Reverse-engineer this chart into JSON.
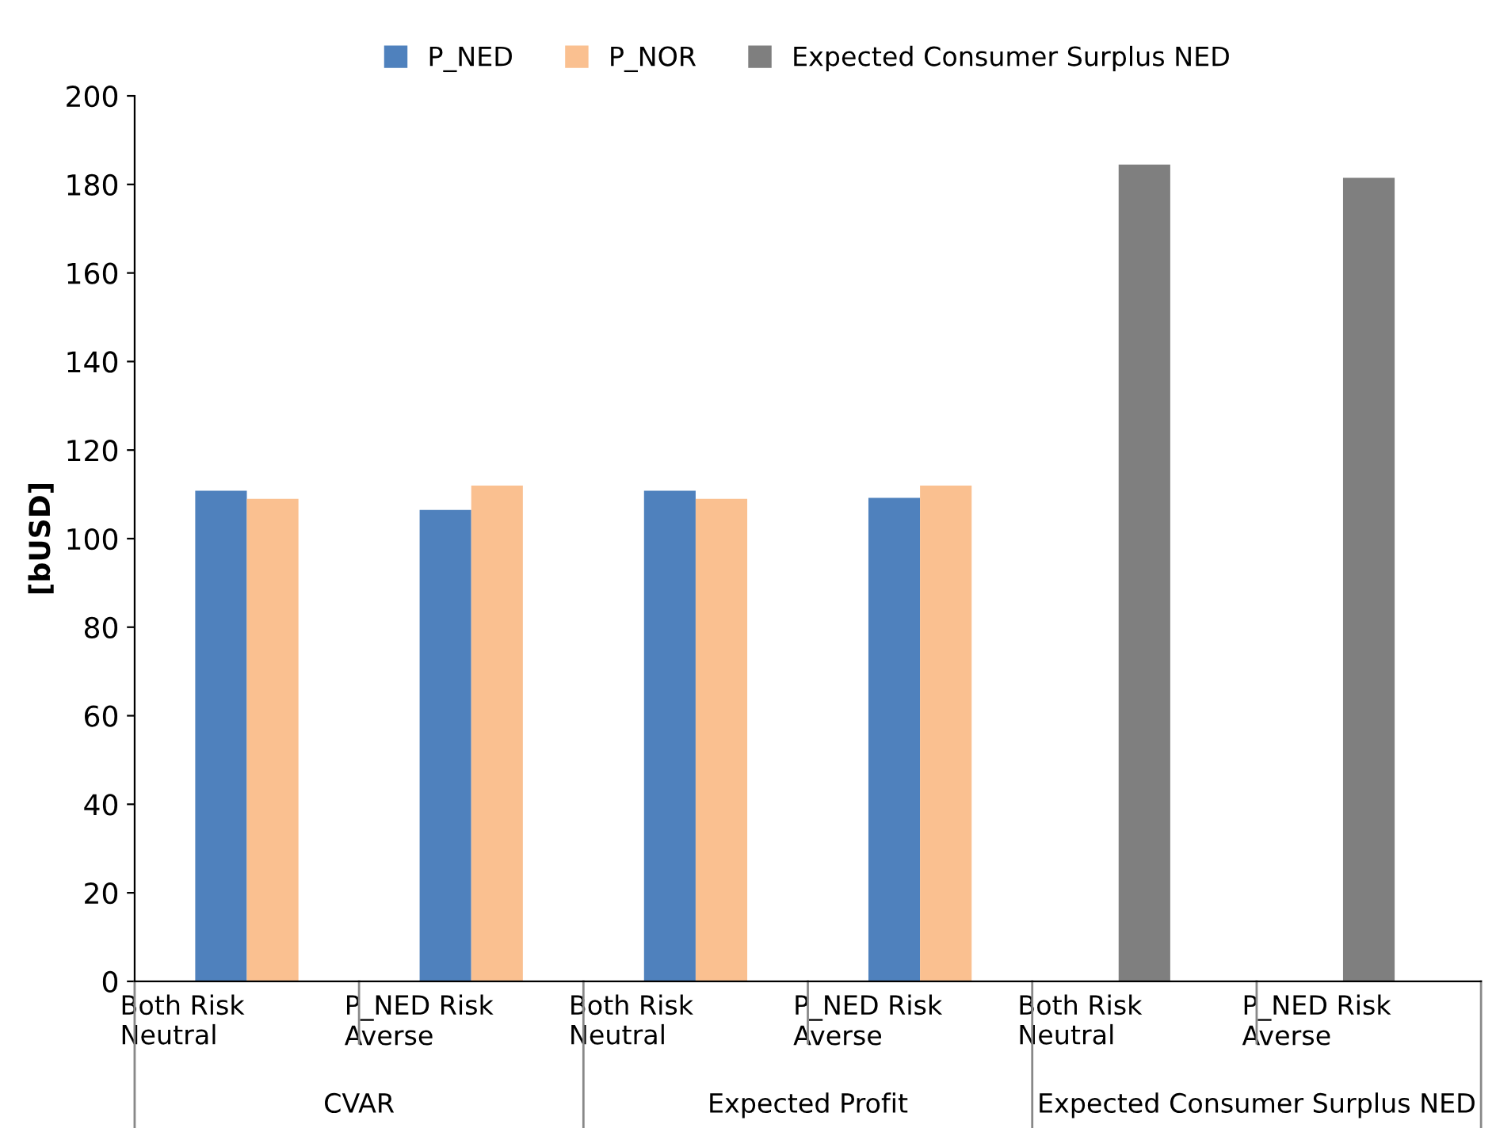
{
  "chart_data": {
    "type": "bar",
    "ylabel": "[bUSD]",
    "categories": [
      "Both Risk\nNeutral",
      "P_NED Risk\nAverse",
      "Both Risk\nNeutral",
      "P_NED Risk\nAverse",
      "Both Risk\nNeutral",
      "P_NED Risk\nAverse"
    ],
    "annotations": [
      "CVAR",
      "Expected Profit",
      "Expected Consumer Surplus NED"
    ],
    "series": [
      {
        "name": "P_NED",
        "color": "#4f81bd",
        "values": [
          110.8,
          106.5,
          110.8,
          109.2,
          null,
          null
        ]
      },
      {
        "name": "P_NOR",
        "color": "#fac090",
        "values": [
          109.0,
          112.0,
          109.0,
          112.0,
          null,
          null
        ]
      },
      {
        "name": "Expected Consumer Surplus NED",
        "color": "#7f7f7f",
        "values": [
          null,
          null,
          null,
          null,
          184.5,
          181.5
        ]
      }
    ],
    "ylim": [
      0,
      200
    ],
    "yticks": [
      0,
      20,
      40,
      60,
      80,
      100,
      120,
      140,
      160,
      180,
      200
    ],
    "grid": false,
    "legend": "top"
  }
}
